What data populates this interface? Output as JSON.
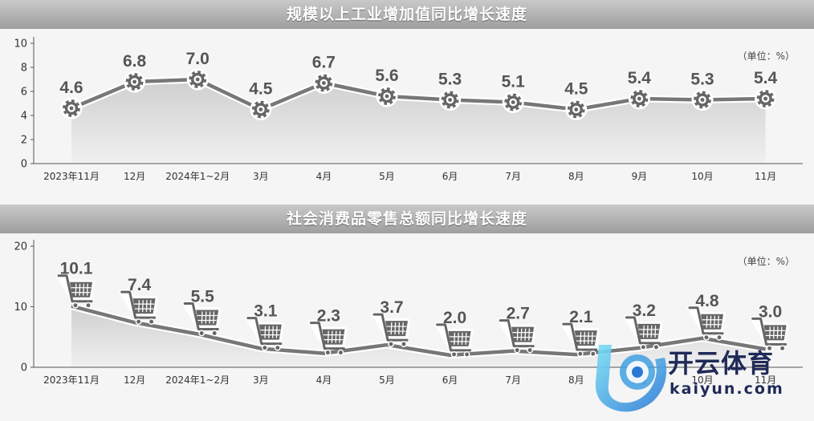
{
  "charts": [
    {
      "type": "line",
      "title": "规模以上工业增加值同比增长速度",
      "unit_label": "（单位：%）",
      "categories": [
        "2023年11月",
        "12月",
        "2024年1~2月",
        "3月",
        "4月",
        "5月",
        "6月",
        "7月",
        "8月",
        "9月",
        "10月",
        "11月"
      ],
      "values": [
        4.6,
        6.8,
        7.0,
        4.5,
        6.7,
        5.6,
        5.3,
        5.1,
        4.5,
        5.4,
        5.3,
        5.4
      ],
      "value_labels": [
        "4.6",
        "6.8",
        "7.0",
        "4.5",
        "6.7",
        "5.6",
        "5.3",
        "5.1",
        "4.5",
        "5.4",
        "5.3",
        "5.4"
      ],
      "y_ticks": [
        "0",
        "2",
        "4",
        "6",
        "8",
        "10"
      ],
      "ylim": [
        0,
        10
      ],
      "marker_icon": "gear-icon",
      "colors": {
        "line": "#777777",
        "marker": "#666666"
      }
    },
    {
      "type": "line",
      "title": "社会消费品零售总额同比增长速度",
      "unit_label": "（单位：%）",
      "categories": [
        "2023年11月",
        "12月",
        "2024年1~2月",
        "3月",
        "4月",
        "5月",
        "6月",
        "7月",
        "8月",
        "9月",
        "10月",
        "11月"
      ],
      "values": [
        10.1,
        7.4,
        5.5,
        3.1,
        2.3,
        3.7,
        2.0,
        2.7,
        2.1,
        3.2,
        4.8,
        3.0
      ],
      "value_labels": [
        "10.1",
        "7.4",
        "5.5",
        "3.1",
        "2.3",
        "3.7",
        "2.0",
        "2.7",
        "2.1",
        "3.2",
        "4.8",
        "3.0"
      ],
      "y_ticks": [
        "0",
        "10",
        "20"
      ],
      "ylim": [
        0,
        20
      ],
      "marker_icon": "shopping-cart-icon",
      "colors": {
        "line": "#777777",
        "marker": "#666666"
      }
    }
  ],
  "watermark": {
    "cn": "开云体育",
    "en": "kaiyun.com"
  }
}
